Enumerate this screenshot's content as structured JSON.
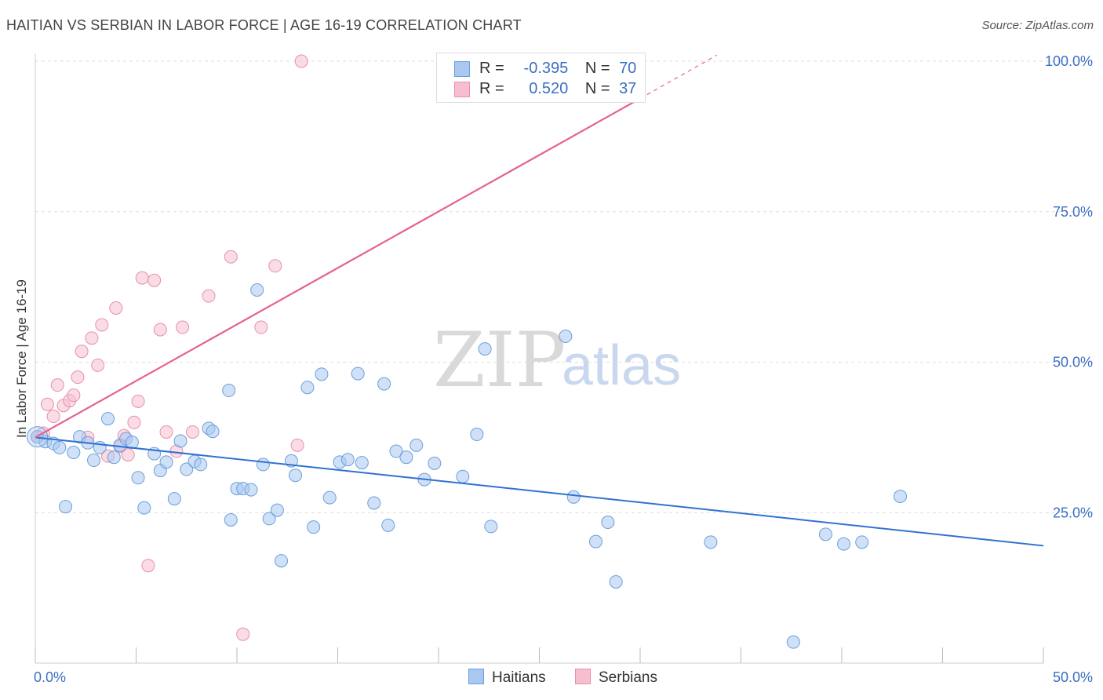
{
  "title": "HAITIAN VS SERBIAN IN LABOR FORCE | AGE 16-19 CORRELATION CHART",
  "source": "Source: ZipAtlas.com",
  "watermark": {
    "zip": "ZIP",
    "atlas": "atlas"
  },
  "legend": {
    "rows": [
      {
        "r_label": "R =",
        "r_value": "-0.395",
        "n_label": "N =",
        "n_value": "70"
      },
      {
        "r_label": "R =",
        "r_value": "0.520",
        "n_label": "N =",
        "n_value": "37"
      }
    ]
  },
  "bottom_legend": {
    "haitians": "Haitians",
    "serbians": "Serbians"
  },
  "colors": {
    "haitians_fill": "#a9c8f0",
    "haitians_stroke": "#6a9fdc",
    "haitians_line": "#2f72d2",
    "serbians_fill": "#f6bfd0",
    "serbians_stroke": "#e98fab",
    "serbians_line": "#e5638f",
    "tick_label": "#3b6fc4"
  },
  "chart_data": {
    "type": "scatter",
    "title": "HAITIAN VS SERBIAN IN LABOR FORCE | AGE 16-19 CORRELATION CHART",
    "xlabel": "",
    "ylabel": "In Labor Force | Age 16-19",
    "xlim": [
      0,
      50
    ],
    "ylim": [
      0,
      105
    ],
    "x_tick_labels": [
      "0.0%",
      "50.0%"
    ],
    "y_ticks": [
      25,
      50,
      75,
      100
    ],
    "y_tick_labels": [
      "25.0%",
      "50.0%",
      "75.0%",
      "100.0%"
    ],
    "grid": true,
    "series": [
      {
        "name": "Haitians",
        "r": -0.395,
        "n": 70,
        "trend": {
          "x0": 0,
          "y0": 37.5,
          "x1": 50,
          "y1": 19.5
        },
        "points": [
          [
            0.1,
            37.6
          ],
          [
            0.5,
            36.8
          ],
          [
            0.9,
            36.5
          ],
          [
            1.2,
            35.8
          ],
          [
            1.5,
            26.0
          ],
          [
            1.9,
            35.0
          ],
          [
            2.2,
            37.6
          ],
          [
            2.6,
            36.6
          ],
          [
            2.9,
            33.7
          ],
          [
            3.2,
            35.8
          ],
          [
            3.6,
            40.6
          ],
          [
            3.9,
            34.2
          ],
          [
            4.2,
            36.2
          ],
          [
            4.5,
            37.3
          ],
          [
            4.8,
            36.7
          ],
          [
            5.1,
            30.8
          ],
          [
            5.4,
            25.8
          ],
          [
            5.9,
            34.8
          ],
          [
            6.2,
            32.0
          ],
          [
            6.5,
            33.4
          ],
          [
            6.9,
            27.3
          ],
          [
            7.2,
            36.9
          ],
          [
            7.5,
            32.2
          ],
          [
            7.9,
            33.5
          ],
          [
            8.2,
            33.0
          ],
          [
            8.6,
            39.0
          ],
          [
            8.8,
            38.5
          ],
          [
            9.6,
            45.3
          ],
          [
            9.7,
            23.8
          ],
          [
            10.0,
            29.0
          ],
          [
            10.3,
            29.0
          ],
          [
            10.7,
            28.8
          ],
          [
            11.0,
            62.0
          ],
          [
            11.3,
            33.0
          ],
          [
            11.6,
            24.0
          ],
          [
            12.0,
            25.4
          ],
          [
            12.2,
            17.0
          ],
          [
            12.7,
            33.6
          ],
          [
            12.9,
            31.2
          ],
          [
            13.5,
            45.8
          ],
          [
            13.8,
            22.6
          ],
          [
            14.2,
            48.0
          ],
          [
            14.6,
            27.5
          ],
          [
            15.1,
            33.4
          ],
          [
            15.5,
            33.8
          ],
          [
            16.0,
            48.1
          ],
          [
            16.2,
            33.3
          ],
          [
            16.8,
            26.6
          ],
          [
            17.3,
            46.4
          ],
          [
            17.5,
            22.9
          ],
          [
            17.9,
            35.2
          ],
          [
            18.4,
            34.2
          ],
          [
            18.9,
            36.2
          ],
          [
            19.3,
            30.5
          ],
          [
            19.8,
            33.2
          ],
          [
            21.2,
            31.0
          ],
          [
            21.9,
            38.0
          ],
          [
            22.3,
            52.2
          ],
          [
            22.6,
            22.7
          ],
          [
            26.3,
            54.3
          ],
          [
            26.7,
            27.6
          ],
          [
            27.8,
            20.2
          ],
          [
            28.4,
            23.4
          ],
          [
            28.8,
            13.5
          ],
          [
            33.5,
            20.1
          ],
          [
            37.6,
            3.5
          ],
          [
            39.2,
            21.4
          ],
          [
            40.1,
            19.8
          ],
          [
            41.0,
            20.1
          ],
          [
            42.9,
            27.7
          ]
        ]
      },
      {
        "name": "Serbians",
        "r": 0.52,
        "n": 37,
        "trend": {
          "x0": 0,
          "y0": 37.5,
          "x1": 30.0,
          "y1": 93.8,
          "dash_to_x": 33.8,
          "dash_to_y": 101
        },
        "points": [
          [
            0.1,
            37.6
          ],
          [
            0.4,
            38.2
          ],
          [
            0.6,
            43.0
          ],
          [
            0.9,
            41.0
          ],
          [
            1.1,
            46.2
          ],
          [
            1.4,
            42.8
          ],
          [
            1.7,
            43.6
          ],
          [
            1.9,
            44.5
          ],
          [
            2.1,
            47.5
          ],
          [
            2.3,
            51.8
          ],
          [
            2.6,
            37.5
          ],
          [
            2.8,
            54.0
          ],
          [
            3.1,
            49.5
          ],
          [
            3.3,
            56.2
          ],
          [
            3.6,
            34.4
          ],
          [
            4.0,
            59.0
          ],
          [
            4.2,
            36.0
          ],
          [
            4.4,
            37.8
          ],
          [
            4.6,
            34.6
          ],
          [
            4.9,
            40.0
          ],
          [
            5.1,
            43.5
          ],
          [
            5.3,
            64.0
          ],
          [
            5.6,
            16.2
          ],
          [
            5.9,
            63.6
          ],
          [
            6.2,
            55.4
          ],
          [
            6.5,
            38.4
          ],
          [
            7.0,
            35.2
          ],
          [
            7.3,
            55.8
          ],
          [
            7.8,
            38.4
          ],
          [
            8.6,
            61.0
          ],
          [
            9.7,
            67.5
          ],
          [
            10.3,
            4.8
          ],
          [
            11.2,
            55.8
          ],
          [
            11.9,
            66.0
          ],
          [
            13.0,
            36.2
          ],
          [
            13.2,
            100.0
          ],
          [
            26.2,
            100.0
          ]
        ]
      }
    ]
  }
}
